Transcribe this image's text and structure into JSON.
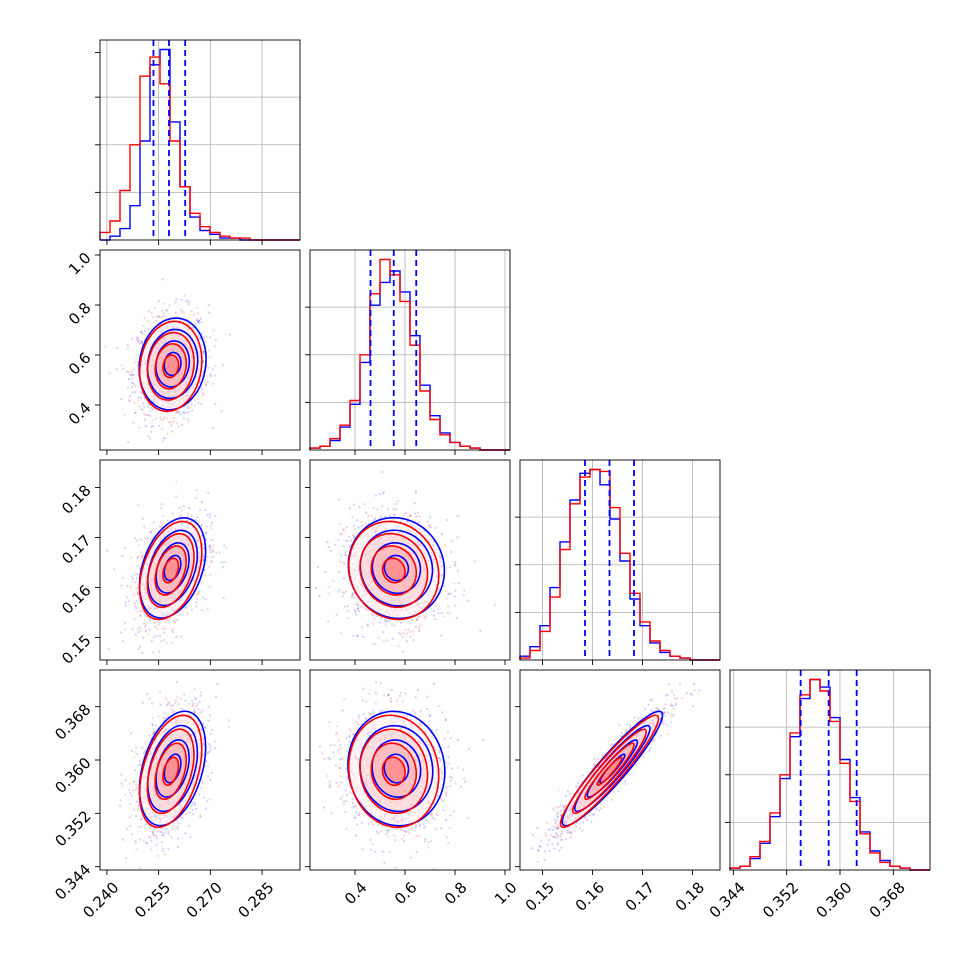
{
  "chart_data": {
    "type": "corner",
    "grid": true,
    "colors": {
      "series_a": "#0000ff",
      "series_b": "#ff0000",
      "quantile_lines": "#0000ff"
    },
    "series": [
      {
        "color": "#0000ff"
      },
      {
        "color": "#ff0000"
      }
    ],
    "parameters": [
      {
        "range": [
          0.238,
          0.296
        ],
        "ticks": [
          0.24,
          0.255,
          0.27,
          0.285
        ],
        "tick_labels": [
          "0.240",
          "0.255",
          "0.270",
          "0.285"
        ],
        "mean": 0.2585,
        "sd": 0.0045,
        "quantiles": [
          0.2535,
          0.258,
          0.2627
        ]
      },
      {
        "range": [
          0.22,
          1.02
        ],
        "ticks": [
          0.4,
          0.6,
          0.8,
          1.0
        ],
        "tick_labels": [
          "0.4",
          "0.6",
          "0.8",
          "1.0"
        ],
        "mean": 0.555,
        "sd": 0.09,
        "quantiles": [
          0.462,
          0.555,
          0.645
        ]
      },
      {
        "range": [
          0.1455,
          0.1855
        ],
        "ticks": [
          0.15,
          0.16,
          0.17,
          0.18
        ],
        "tick_labels": [
          "0.15",
          "0.16",
          "0.17",
          "0.18"
        ],
        "mean": 0.1634,
        "sd": 0.0049,
        "quantiles": [
          0.1585,
          0.1634,
          0.1683
        ]
      },
      {
        "range": [
          0.3435,
          0.3735
        ],
        "ticks": [
          0.344,
          0.352,
          0.36,
          0.368
        ],
        "tick_labels": [
          "0.344",
          "0.352",
          "0.360",
          "0.368"
        ],
        "mean": 0.3583,
        "sd": 0.0042,
        "quantiles": [
          0.3541,
          0.3583,
          0.3625
        ]
      }
    ],
    "histograms": [
      {
        "bins": 20,
        "series_a": [
          0,
          2,
          6,
          18,
          52,
          92,
          100,
          62,
          28,
          12,
          5,
          3,
          1,
          1,
          0,
          0,
          0,
          0,
          0,
          0
        ],
        "series_b": [
          4,
          10,
          26,
          50,
          86,
          96,
          82,
          52,
          28,
          14,
          7,
          4,
          2,
          1,
          1,
          0,
          0,
          0,
          0,
          0
        ]
      },
      {
        "bins": 20,
        "series_a": [
          1,
          2,
          5,
          12,
          24,
          46,
          76,
          88,
          94,
          83,
          60,
          34,
          18,
          9,
          4,
          2,
          1,
          0,
          0,
          0
        ],
        "series_b": [
          1,
          2,
          6,
          13,
          26,
          50,
          82,
          100,
          92,
          78,
          55,
          31,
          16,
          8,
          4,
          2,
          1,
          0,
          0,
          0
        ]
      },
      {
        "bins": 20,
        "series_a": [
          2,
          7,
          18,
          38,
          62,
          84,
          98,
          100,
          92,
          74,
          52,
          32,
          18,
          9,
          4,
          2,
          1,
          0,
          0,
          0
        ],
        "series_b": [
          1,
          5,
          15,
          33,
          58,
          82,
          96,
          100,
          99,
          80,
          56,
          35,
          20,
          10,
          5,
          2,
          1,
          0,
          0,
          0
        ]
      },
      {
        "bins": 20,
        "series_a": [
          1,
          2,
          6,
          14,
          28,
          48,
          70,
          90,
          100,
          96,
          80,
          58,
          38,
          20,
          10,
          5,
          2,
          1,
          0,
          0
        ],
        "series_b": [
          1,
          2,
          7,
          15,
          30,
          50,
          72,
          92,
          100,
          94,
          78,
          56,
          36,
          19,
          9,
          4,
          2,
          1,
          0,
          0
        ]
      }
    ],
    "correlations": {
      "1-0": 0.12,
      "2-0": 0.38,
      "2-1": -0.1,
      "3-0": 0.4,
      "3-1": -0.08,
      "3-2": 0.94
    }
  }
}
